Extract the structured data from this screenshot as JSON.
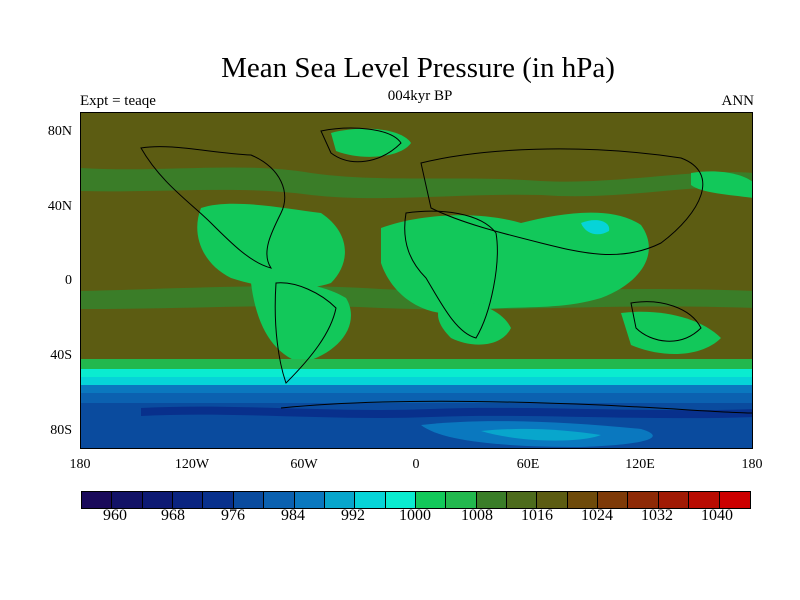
{
  "title": "Mean Sea Level Pressure (in hPa)",
  "left_label": "Expt = teaqe",
  "center_label": "004kyr BP",
  "right_label": "ANN",
  "lat_ticks": [
    "80N",
    "40N",
    "0",
    "40S",
    "80S"
  ],
  "lon_ticks": [
    "180",
    "120W",
    "60W",
    "0",
    "60E",
    "120E",
    "180"
  ],
  "colorbar": {
    "labels": [
      "960",
      "968",
      "976",
      "984",
      "992",
      "1000",
      "1008",
      "1016",
      "1024",
      "1032",
      "1040"
    ],
    "colors": [
      "#1a0a5a",
      "#121266",
      "#0d1a73",
      "#0a2480",
      "#08308c",
      "#0a4b9e",
      "#0b61b0",
      "#0a78bf",
      "#08a6cc",
      "#06d4d8",
      "#0aecd0",
      "#12c85a",
      "#22b84e",
      "#3a7d28",
      "#4d6b1c",
      "#5c5c12",
      "#6e4a0a",
      "#7e3a08",
      "#8e2a06",
      "#a01a04",
      "#b80c02",
      "#cc0000"
    ]
  },
  "colors": {
    "land_outline": "#000000",
    "high_pressure": "#5a5a14",
    "mid_pressure": "#3a7d28",
    "low_green": "#12c85a",
    "cyan": "#06d4d8",
    "deep_blue": "#0a4b9e"
  }
}
